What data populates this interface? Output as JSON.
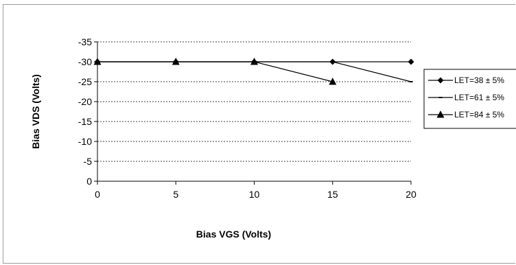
{
  "chart_data": {
    "type": "line",
    "xlabel": "Bias VGS (Volts)",
    "ylabel": "Bias VDS (Volts)",
    "xlim": [
      0,
      20
    ],
    "ylim": [
      0,
      -35
    ],
    "y_reversed": true,
    "xticks": [
      0,
      5,
      10,
      15,
      20
    ],
    "yticks": [
      0,
      -5,
      -10,
      -15,
      -20,
      -25,
      -30,
      -35
    ],
    "grid": "horizontal-dashed",
    "legend_position": "right",
    "series": [
      {
        "name": "LET=38 ± 5%",
        "marker": "diamond",
        "x": [
          0,
          5,
          10,
          15,
          20
        ],
        "y": [
          -30,
          -30,
          -30,
          -30,
          -30
        ]
      },
      {
        "name": "LET=61 ± 5%",
        "marker": "dash",
        "x": [
          0,
          5,
          10,
          15,
          20
        ],
        "y": [
          -30,
          -30,
          -30,
          -30,
          -25
        ]
      },
      {
        "name": "LET=84 ± 5%",
        "marker": "triangle",
        "x": [
          0,
          5,
          10,
          15
        ],
        "y": [
          -30,
          -30,
          -30,
          -25
        ]
      }
    ]
  }
}
